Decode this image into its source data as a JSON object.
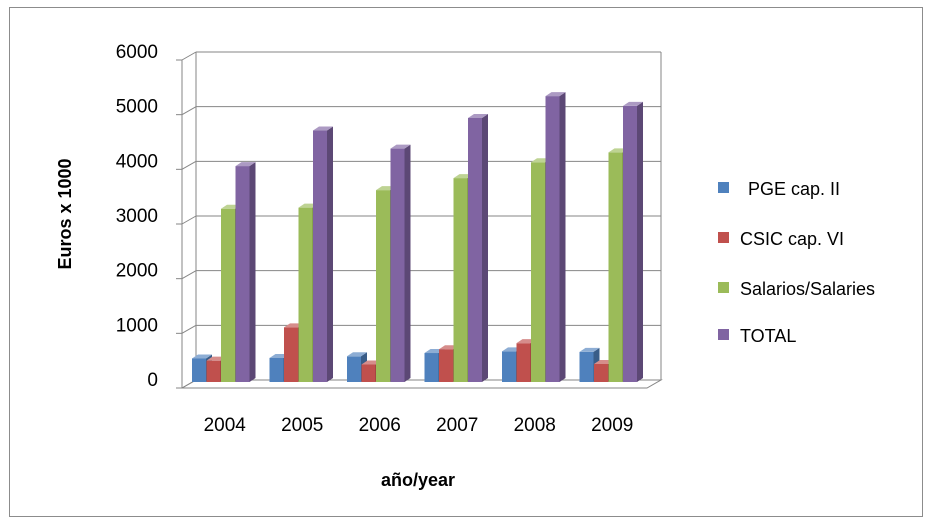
{
  "chart_data": {
    "type": "bar",
    "style": "3d-clustered-column",
    "categories": [
      "2004",
      "2005",
      "2006",
      "2007",
      "2008",
      "2009"
    ],
    "series": [
      {
        "name": "PGE cap. II",
        "color": "#4f81bd",
        "values": [
          430,
          440,
          470,
          530,
          560,
          550
        ]
      },
      {
        "name": "CSIC cap. VI",
        "color": "#c0504d",
        "values": [
          390,
          1000,
          320,
          600,
          710,
          330
        ]
      },
      {
        "name": "Salarios/Salaries",
        "color": "#9bbb59",
        "values": [
          3170,
          3190,
          3510,
          3730,
          4020,
          4200
        ]
      },
      {
        "name": "TOTAL",
        "color": "#8064a2",
        "values": [
          3950,
          4600,
          4270,
          4830,
          5230,
          5050
        ]
      }
    ],
    "xlabel": "año/year",
    "ylabel": "Euros x 1000",
    "ylim": [
      0,
      6000
    ],
    "yticks": [
      "0",
      "1000",
      "2000",
      "3000",
      "4000",
      "5000",
      "6000"
    ],
    "grid": true,
    "legend": "right"
  }
}
